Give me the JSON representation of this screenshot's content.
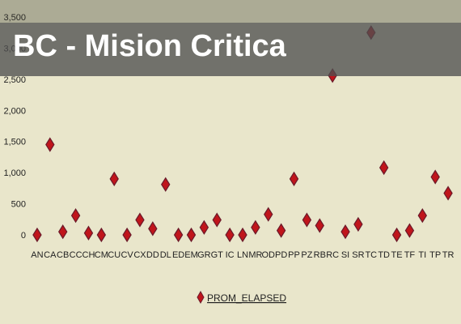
{
  "slide": {
    "title": "BC - Mision Critica"
  },
  "chart_data": {
    "type": "scatter",
    "title": "",
    "xlabel": "",
    "ylabel": "",
    "ylim": [
      0,
      3500
    ],
    "y_ticks": [
      "0",
      "500",
      "1,000",
      "1,500",
      "2,000",
      "2,500",
      "3,000",
      "3,500"
    ],
    "grid": false,
    "legend_position": "bottom-center",
    "marker_color": "#c0151b",
    "marker_edge_color": "#6a1a2a",
    "categories": [
      "AN",
      "CA",
      "CB",
      "CC",
      "CH",
      "CM",
      "CU",
      "CV",
      "CX",
      "DD",
      "DL",
      "ED",
      "EM",
      "GR",
      "GT",
      "IC",
      "LN",
      "MR",
      "OD",
      "PD",
      "PP",
      "PZ",
      "RB",
      "RC",
      "SI",
      "SR",
      "TC",
      "TD",
      "TE",
      "TF",
      "TI",
      "TP",
      "TR"
    ],
    "series": [
      {
        "name": "PROM_ELAPSED",
        "values": [
          0,
          1450,
          50,
          310,
          30,
          0,
          900,
          0,
          240,
          100,
          810,
          0,
          0,
          120,
          240,
          0,
          0,
          120,
          330,
          70,
          900,
          240,
          150,
          2560,
          50,
          170,
          3250,
          1080,
          0,
          70,
          310,
          930,
          670
        ]
      }
    ]
  }
}
